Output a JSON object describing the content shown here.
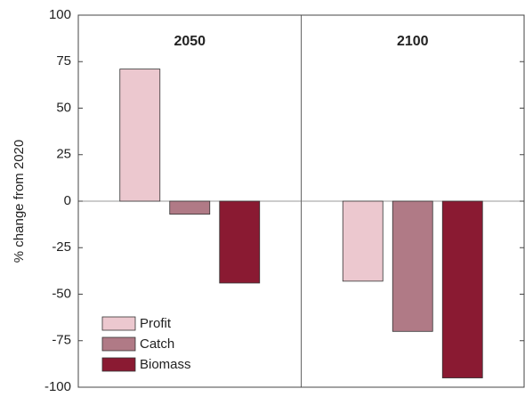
{
  "chart_data": {
    "type": "bar",
    "y_label": "% change from 2020",
    "categories": [
      "2050",
      "2100"
    ],
    "series": [
      {
        "name": "Profit",
        "color": "#ecc8cf",
        "values": [
          71,
          -43
        ]
      },
      {
        "name": "Catch",
        "color": "#b07a86",
        "values": [
          -7,
          -70
        ]
      },
      {
        "name": "Biomass",
        "color": "#8a1a32",
        "values": [
          -44,
          -95
        ]
      }
    ],
    "ylim": [
      -100,
      100
    ],
    "yticks": [
      -100,
      -75,
      -50,
      -25,
      0,
      25,
      50,
      75,
      100
    ],
    "legend": "lower left"
  }
}
